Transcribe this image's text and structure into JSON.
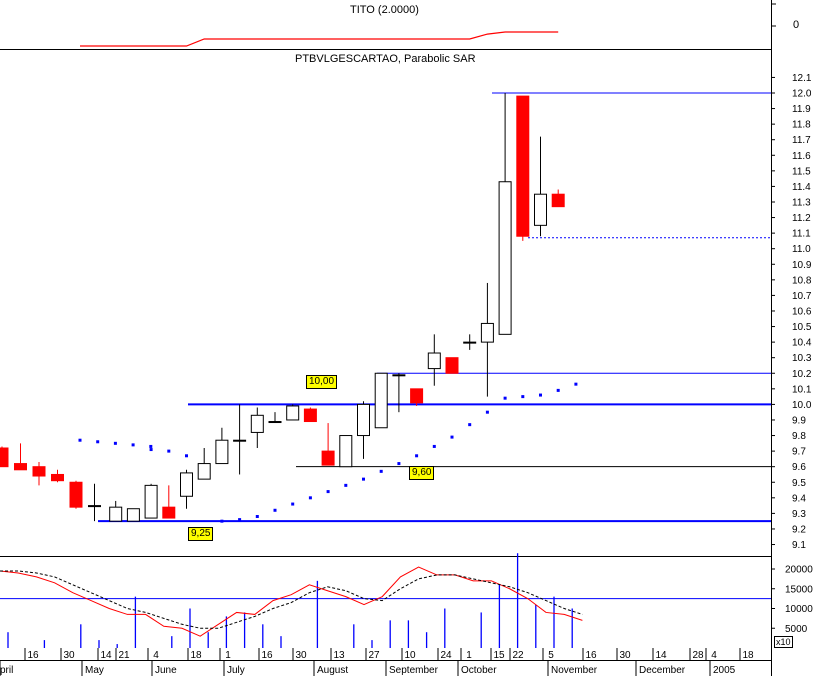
{
  "indicator_panel": {
    "title": "TITO (2.0000)",
    "axis_label": "0"
  },
  "main_panel": {
    "title": "PTBVLGESCARTAO, Parabolic SAR"
  },
  "annotations": {
    "resistance": "10,00",
    "middle": "9,60",
    "support": "9,25"
  },
  "volume_panel": {
    "scale_note": "x10"
  },
  "colors": {
    "up": "#ffffff",
    "down": "#ff0000",
    "sar": "#0000ff",
    "level_line": "#0000ff",
    "indicator": "#ff0000",
    "ma": "#000000"
  },
  "chart_data": [
    {
      "type": "line",
      "panel": "indicator",
      "title": "TITO (2.0000)",
      "x_index": [
        10,
        13,
        14,
        15,
        16,
        17,
        18,
        19,
        20,
        21,
        22,
        23,
        24,
        25,
        26,
        27,
        28,
        29,
        30,
        31,
        32,
        33,
        34,
        35,
        36
      ],
      "values": [
        0,
        0,
        0,
        0,
        1,
        1,
        1,
        1,
        1,
        1,
        1,
        1,
        1,
        1,
        1,
        1,
        1,
        1,
        1,
        1,
        1.7,
        2,
        2,
        2,
        2
      ],
      "y_tick_labels": [
        "0"
      ]
    },
    {
      "type": "candlestick",
      "panel": "price",
      "title": "PTBVLGESCARTAO, Parabolic SAR",
      "ylim": [
        9.0,
        12.2
      ],
      "y_ticks": [
        9.1,
        9.2,
        9.3,
        9.4,
        9.5,
        9.6,
        9.7,
        9.8,
        9.9,
        10.0,
        10.1,
        10.2,
        10.3,
        10.4,
        10.5,
        10.6,
        10.7,
        10.8,
        10.9,
        11.0,
        11.1,
        11.2,
        11.3,
        11.4,
        11.5,
        11.6,
        11.7,
        11.8,
        11.9,
        12.0,
        12.1
      ],
      "x_tick_labels": [
        "16",
        "30",
        "14",
        "21",
        "4",
        "18",
        "1",
        "16",
        "30",
        "13",
        "27",
        "10",
        "24",
        "1",
        "15",
        "22",
        "5",
        "16",
        "30",
        "14",
        "28",
        "4",
        "18"
      ],
      "month_labels": [
        "pril",
        "May",
        "June",
        "July",
        "August",
        "September",
        "October",
        "November",
        "December",
        "2005"
      ],
      "candles": [
        {
          "o": 9.72,
          "h": 9.73,
          "l": 9.6,
          "c": 9.6
        },
        {
          "o": 9.62,
          "h": 9.75,
          "l": 9.58,
          "c": 9.58
        },
        {
          "o": 9.6,
          "h": 9.63,
          "l": 9.48,
          "c": 9.54
        },
        {
          "o": 9.55,
          "h": 9.58,
          "l": 9.5,
          "c": 9.51
        },
        {
          "o": 9.5,
          "h": 9.51,
          "l": 9.33,
          "c": 9.34
        },
        {
          "o": 9.35,
          "h": 9.49,
          "l": 9.25,
          "c": 9.35
        },
        {
          "o": 9.25,
          "h": 9.38,
          "l": 9.25,
          "c": 9.34
        },
        {
          "o": 9.25,
          "h": 9.33,
          "l": 9.25,
          "c": 9.33
        },
        {
          "o": 9.27,
          "h": 9.49,
          "l": 9.27,
          "c": 9.48
        },
        {
          "o": 9.34,
          "h": 9.48,
          "l": 9.27,
          "c": 9.27
        },
        {
          "o": 9.41,
          "h": 9.58,
          "l": 9.33,
          "c": 9.56
        },
        {
          "o": 9.52,
          "h": 9.72,
          "l": 9.52,
          "c": 9.62
        },
        {
          "o": 9.62,
          "h": 9.85,
          "l": 9.62,
          "c": 9.77
        },
        {
          "o": 9.77,
          "h": 10.0,
          "l": 9.55,
          "c": 9.77
        },
        {
          "o": 9.82,
          "h": 9.98,
          "l": 9.72,
          "c": 9.93
        },
        {
          "o": 9.89,
          "h": 9.95,
          "l": 9.89,
          "c": 9.89
        },
        {
          "o": 9.9,
          "h": 10.0,
          "l": 9.9,
          "c": 9.99
        },
        {
          "o": 9.97,
          "h": 9.98,
          "l": 9.89,
          "c": 9.89
        },
        {
          "o": 9.7,
          "h": 9.88,
          "l": 9.61,
          "c": 9.61
        },
        {
          "o": 9.6,
          "h": 9.8,
          "l": 9.6,
          "c": 9.8
        },
        {
          "o": 9.8,
          "h": 10.02,
          "l": 9.65,
          "c": 10.0
        },
        {
          "o": 9.85,
          "h": 10.2,
          "l": 9.85,
          "c": 10.2
        },
        {
          "o": 10.19,
          "h": 10.2,
          "l": 9.95,
          "c": 10.19
        },
        {
          "o": 10.1,
          "h": 10.1,
          "l": 9.99,
          "c": 10.01
        },
        {
          "o": 10.23,
          "h": 10.45,
          "l": 10.12,
          "c": 10.33
        },
        {
          "o": 10.3,
          "h": 10.3,
          "l": 10.2,
          "c": 10.2
        },
        {
          "o": 10.4,
          "h": 10.45,
          "l": 10.35,
          "c": 10.4
        },
        {
          "o": 10.4,
          "h": 10.78,
          "l": 10.05,
          "c": 10.52
        },
        {
          "o": 10.45,
          "h": 12.0,
          "l": 10.45,
          "c": 11.43
        },
        {
          "o": 11.98,
          "h": 11.98,
          "l": 11.05,
          "c": 11.08
        },
        {
          "o": 11.15,
          "h": 11.72,
          "l": 11.08,
          "c": 11.35
        },
        {
          "o": 11.35,
          "h": 11.38,
          "l": 11.27,
          "c": 11.27
        }
      ],
      "sar": [
        {
          "i": 3,
          "v": 9.77
        },
        {
          "i": 4,
          "v": 9.76
        },
        {
          "i": 5,
          "v": 9.75
        },
        {
          "i": 6,
          "v": 9.74
        },
        {
          "i": 7,
          "v": 9.73
        },
        {
          "i": 8,
          "v": 9.71
        },
        {
          "i": 9,
          "v": 9.7
        },
        {
          "i": 10,
          "v": 9.67
        },
        {
          "i": 12,
          "v": 9.25
        },
        {
          "i": 13,
          "v": 9.26
        },
        {
          "i": 14,
          "v": 9.28
        },
        {
          "i": 15,
          "v": 9.32
        },
        {
          "i": 16,
          "v": 9.36
        },
        {
          "i": 17,
          "v": 9.4
        },
        {
          "i": 18,
          "v": 9.44
        },
        {
          "i": 19,
          "v": 9.48
        },
        {
          "i": 20,
          "v": 9.52
        },
        {
          "i": 21,
          "v": 9.57
        },
        {
          "i": 22,
          "v": 9.62
        },
        {
          "i": 23,
          "v": 9.67
        },
        {
          "i": 24,
          "v": 9.73
        },
        {
          "i": 25,
          "v": 9.79
        },
        {
          "i": 26,
          "v": 9.87
        },
        {
          "i": 27,
          "v": 9.95
        },
        {
          "i": 28,
          "v": 10.04
        },
        {
          "i": 29,
          "v": 10.05
        },
        {
          "i": 30,
          "v": 10.06
        },
        {
          "i": 31,
          "v": 10.09
        },
        {
          "i": 32,
          "v": 10.13
        }
      ],
      "levels": [
        12.0,
        10.2,
        10.0,
        9.6,
        9.25
      ],
      "last_price_level": 11.07
    },
    {
      "type": "bar",
      "panel": "volume",
      "ylim": [
        0,
        25000
      ],
      "y_ticks": [
        5000,
        10000,
        15000,
        20000
      ],
      "bars": [
        {
          "i": 0,
          "v": 4000
        },
        {
          "i": 2,
          "v": 2000
        },
        {
          "i": 4,
          "v": 6000
        },
        {
          "i": 5,
          "v": 2000
        },
        {
          "i": 6,
          "v": 1000
        },
        {
          "i": 7,
          "v": 13000
        },
        {
          "i": 9,
          "v": 3000
        },
        {
          "i": 10,
          "v": 10000
        },
        {
          "i": 11,
          "v": 4000
        },
        {
          "i": 12,
          "v": 8000
        },
        {
          "i": 13,
          "v": 9000
        },
        {
          "i": 14,
          "v": 6000
        },
        {
          "i": 15,
          "v": 3000
        },
        {
          "i": 17,
          "v": 17000
        },
        {
          "i": 19,
          "v": 6000
        },
        {
          "i": 20,
          "v": 2000
        },
        {
          "i": 21,
          "v": 7000
        },
        {
          "i": 22,
          "v": 7000
        },
        {
          "i": 23,
          "v": 4000
        },
        {
          "i": 24,
          "v": 10000
        },
        {
          "i": 26,
          "v": 9000
        },
        {
          "i": 27,
          "v": 16000
        },
        {
          "i": 28,
          "v": 24000
        },
        {
          "i": 29,
          "v": 11000
        },
        {
          "i": 30,
          "v": 13000
        },
        {
          "i": 31,
          "v": 10000
        }
      ],
      "reference_level": 12500,
      "indicator_line": [
        {
          "i": 0,
          "v": 19500
        },
        {
          "i": 1,
          "v": 19000
        },
        {
          "i": 2,
          "v": 18000
        },
        {
          "i": 3,
          "v": 16500
        },
        {
          "i": 4,
          "v": 14000
        },
        {
          "i": 5,
          "v": 12000
        },
        {
          "i": 6,
          "v": 10000
        },
        {
          "i": 7,
          "v": 8500
        },
        {
          "i": 8,
          "v": 8500
        },
        {
          "i": 9,
          "v": 5500
        },
        {
          "i": 10,
          "v": 5000
        },
        {
          "i": 11,
          "v": 3000
        },
        {
          "i": 12,
          "v": 6000
        },
        {
          "i": 13,
          "v": 9000
        },
        {
          "i": 14,
          "v": 8500
        },
        {
          "i": 15,
          "v": 12000
        },
        {
          "i": 16,
          "v": 13500
        },
        {
          "i": 17,
          "v": 16000
        },
        {
          "i": 18,
          "v": 14500
        },
        {
          "i": 19,
          "v": 13000
        },
        {
          "i": 20,
          "v": 11000
        },
        {
          "i": 21,
          "v": 13000
        },
        {
          "i": 22,
          "v": 18000
        },
        {
          "i": 23,
          "v": 20500
        },
        {
          "i": 24,
          "v": 18500
        },
        {
          "i": 25,
          "v": 18500
        },
        {
          "i": 26,
          "v": 17000
        },
        {
          "i": 27,
          "v": 17000
        },
        {
          "i": 28,
          "v": 15000
        },
        {
          "i": 29,
          "v": 12500
        },
        {
          "i": 30,
          "v": 9000
        },
        {
          "i": 31,
          "v": 8500
        },
        {
          "i": 32,
          "v": 7000
        }
      ],
      "moving_average": [
        {
          "i": 0,
          "v": 19500
        },
        {
          "i": 1,
          "v": 19500
        },
        {
          "i": 2,
          "v": 19000
        },
        {
          "i": 3,
          "v": 18000
        },
        {
          "i": 4,
          "v": 16000
        },
        {
          "i": 5,
          "v": 14000
        },
        {
          "i": 6,
          "v": 12000
        },
        {
          "i": 7,
          "v": 10000
        },
        {
          "i": 8,
          "v": 9000
        },
        {
          "i": 9,
          "v": 7500
        },
        {
          "i": 10,
          "v": 6000
        },
        {
          "i": 11,
          "v": 5000
        },
        {
          "i": 12,
          "v": 5000
        },
        {
          "i": 13,
          "v": 6500
        },
        {
          "i": 14,
          "v": 8000
        },
        {
          "i": 15,
          "v": 10000
        },
        {
          "i": 16,
          "v": 11500
        },
        {
          "i": 17,
          "v": 14000
        },
        {
          "i": 18,
          "v": 15500
        },
        {
          "i": 19,
          "v": 14500
        },
        {
          "i": 20,
          "v": 12500
        },
        {
          "i": 21,
          "v": 12000
        },
        {
          "i": 22,
          "v": 15000
        },
        {
          "i": 23,
          "v": 17500
        },
        {
          "i": 24,
          "v": 18500
        },
        {
          "i": 25,
          "v": 18500
        },
        {
          "i": 26,
          "v": 17500
        },
        {
          "i": 27,
          "v": 16500
        },
        {
          "i": 28,
          "v": 15500
        },
        {
          "i": 29,
          "v": 14000
        },
        {
          "i": 30,
          "v": 12000
        },
        {
          "i": 31,
          "v": 10000
        },
        {
          "i": 32,
          "v": 8500
        }
      ]
    }
  ]
}
